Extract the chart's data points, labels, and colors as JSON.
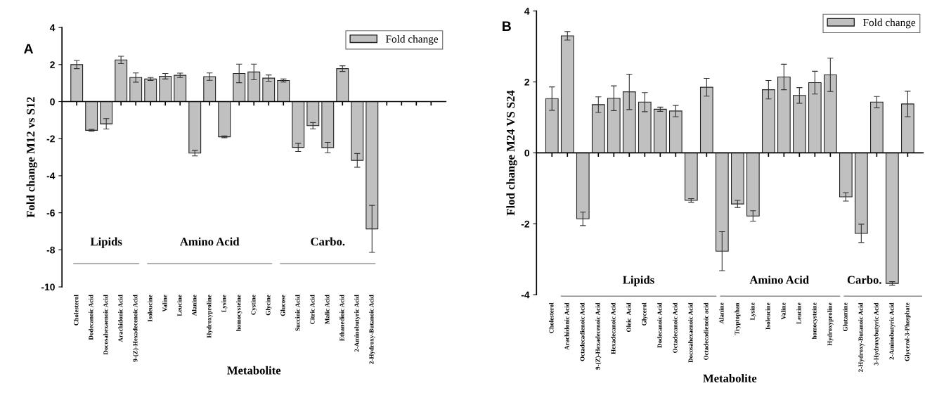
{
  "chart_data": [
    {
      "type": "bar",
      "title": null,
      "xlabel": "Metabolite",
      "ylabel": "Fold change M12 vs S12",
      "annotations": [
        "A",
        "Lipids",
        "Amino Acid",
        "Carbo."
      ],
      "categories": [
        "Cholesterol",
        "Dodecanoic Acid",
        "Docosahexaenoic Acid",
        "Arachidonic Acid",
        "9-(Z)-Hexadecenoic Acid",
        "Isoleucine",
        "Valine",
        "Leucine",
        "Alanine",
        "Hydroxyproline",
        "Lysine",
        "homocysteine",
        "Cystine",
        "Glycine",
        "Glucose",
        "Succinic Acid",
        "Citric Acid",
        "Malic Acid",
        "Ethanedioic Acid",
        "2-Aminobutyric Acid",
        "2-Hydroxy-Butanoic Acid",
        null,
        null,
        null,
        null
      ],
      "series": [
        {
          "name": "Fold change",
          "color": "#c0c0c0",
          "values": [
            2.0,
            -1.55,
            -1.2,
            2.25,
            1.3,
            1.22,
            1.37,
            1.42,
            -2.78,
            1.35,
            -1.9,
            1.52,
            1.6,
            1.27,
            1.14,
            -2.47,
            -1.3,
            -2.48,
            1.78,
            -3.17,
            -6.87,
            null,
            null,
            null,
            null
          ],
          "errors": [
            0.22,
            0.05,
            0.28,
            0.2,
            0.25,
            0.08,
            0.15,
            0.12,
            0.15,
            0.2,
            0.05,
            0.5,
            0.42,
            0.17,
            0.08,
            0.22,
            0.17,
            0.28,
            0.15,
            0.37,
            1.27,
            null,
            null,
            null,
            null
          ]
        }
      ],
      "ylim": [
        -10,
        4
      ],
      "yticks": [
        -10,
        -8,
        -6,
        -4,
        -2,
        0,
        2,
        4
      ],
      "legend": "top right"
    },
    {
      "type": "bar",
      "title": null,
      "xlabel": "Metabolite",
      "ylabel": "Flod change M24 VS S24",
      "annotations": [
        "B",
        "Lipids",
        "Amino Acid",
        "Carbo."
      ],
      "categories": [
        "Cholesterol",
        "Arachidonic Acid",
        "Octadecadienoic Acid",
        "9-(Z)-Hexadecenoic Acid",
        "Hexadecanoic Acid",
        "Oleic  Acid",
        "Glycerol",
        "Dodecanoic Acid",
        "Octadecanoic Acid",
        "Docosahexaenoic Acid",
        "Octadecadienoic acid",
        "Alanine",
        "Tryptophan",
        "Lysine",
        "Isoleucine",
        "Valine",
        "Leucine",
        "homocysteine",
        "Hydroxyproline",
        "Glutamine",
        "2-Hydroxy-Butanoic Acid",
        "3-Hydroxybutyric Acid",
        "2-Aminobutyric Acid",
        "Glycerol-3-Phosphate"
      ],
      "series": [
        {
          "name": "Fold change",
          "color": "#c0c0c0",
          "values": [
            1.53,
            3.3,
            -1.86,
            1.36,
            1.54,
            1.72,
            1.43,
            1.23,
            1.18,
            -1.34,
            1.85,
            -2.77,
            -1.44,
            -1.78,
            1.78,
            2.14,
            1.62,
            1.98,
            2.2,
            -1.24,
            -2.27,
            1.43,
            -3.68,
            1.38
          ],
          "errors": [
            0.33,
            0.12,
            0.19,
            0.22,
            0.35,
            0.5,
            0.27,
            0.06,
            0.16,
            0.05,
            0.25,
            0.55,
            0.1,
            0.15,
            0.26,
            0.36,
            0.22,
            0.32,
            0.47,
            0.12,
            0.26,
            0.16,
            0.05,
            0.36
          ]
        }
      ],
      "ylim": [
        -4,
        4
      ],
      "yticks": [
        -4,
        -2,
        0,
        2,
        4
      ],
      "legend": "top right"
    }
  ]
}
